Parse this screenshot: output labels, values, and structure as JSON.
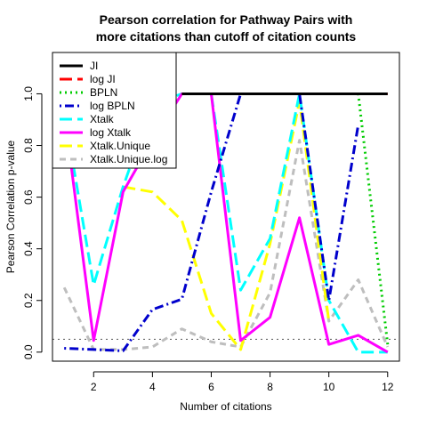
{
  "chart_data": {
    "type": "line",
    "title_lines": [
      "Pearson correlation for Pathway Pairs with",
      "more citations than cutoff of citation counts"
    ],
    "xlabel": "Number of citations",
    "ylabel": "Pearson Correlation p-value",
    "xlim": [
      0.6,
      12.4
    ],
    "ylim": [
      -0.035,
      1.16
    ],
    "xticks": [
      2,
      4,
      6,
      8,
      10,
      12
    ],
    "yticks": [
      0.0,
      0.2,
      0.4,
      0.6,
      0.8,
      1.0
    ],
    "xtick_labels": [
      "2",
      "4",
      "6",
      "8",
      "10",
      "12"
    ],
    "ytick_labels": [
      "0.0",
      "0.2",
      "0.4",
      "0.6",
      "0.8",
      "1.0"
    ],
    "reference_line": {
      "y": 0.05,
      "style": "dotted",
      "color": "#555555"
    },
    "legend_position": "top-left",
    "x": [
      1,
      2,
      3,
      4,
      5,
      6,
      7,
      8,
      9,
      10,
      11,
      12
    ],
    "series": [
      {
        "name": "JI",
        "color": "#000000",
        "dash": "solid",
        "values": [
          null,
          null,
          null,
          null,
          1.0,
          1.0,
          1.0,
          1.0,
          1.0,
          1.0,
          1.0,
          1.0
        ]
      },
      {
        "name": "log JI",
        "color": "#ff0000",
        "dash": "longdash",
        "values": [
          null,
          null,
          null,
          null,
          1.0,
          1.0,
          1.0,
          1.0,
          1.0,
          1.0,
          1.0,
          1.0
        ]
      },
      {
        "name": "BPLN",
        "color": "#00cc00",
        "dash": "dotted",
        "values": [
          null,
          null,
          null,
          null,
          1.0,
          1.0,
          1.0,
          1.0,
          1.0,
          1.0,
          1.0,
          0.03
        ]
      },
      {
        "name": "log BPLN",
        "color": "#0000cc",
        "dash": "dotdash",
        "values": [
          0.015,
          0.01,
          0.005,
          0.165,
          0.205,
          0.62,
          1.0,
          1.0,
          1.0,
          0.2,
          0.88,
          null
        ]
      },
      {
        "name": "Xtalk",
        "color": "#00ffff",
        "dash": "longdash",
        "values": [
          0.93,
          0.26,
          0.64,
          0.96,
          1.0,
          1.0,
          0.24,
          0.44,
          1.0,
          0.2,
          0.0,
          0.0
        ]
      },
      {
        "name": "log Xtalk",
        "color": "#ff00ff",
        "dash": "solid",
        "values": [
          0.93,
          0.045,
          0.62,
          0.82,
          1.0,
          1.0,
          0.045,
          0.135,
          0.52,
          0.03,
          0.065,
          0.0
        ]
      },
      {
        "name": "Xtalk.Unique",
        "color": "#ffff00",
        "dash": "longdash",
        "values": [
          null,
          null,
          0.64,
          0.62,
          0.51,
          0.15,
          0.01,
          0.42,
          0.97,
          0.12,
          null,
          null
        ]
      },
      {
        "name": "Xtalk.Unique.log",
        "color": "#bebebe",
        "dash": "dashed",
        "values": [
          0.25,
          0.01,
          0.01,
          0.02,
          0.09,
          0.04,
          0.02,
          0.23,
          0.82,
          0.12,
          0.28,
          0.02
        ]
      }
    ]
  }
}
